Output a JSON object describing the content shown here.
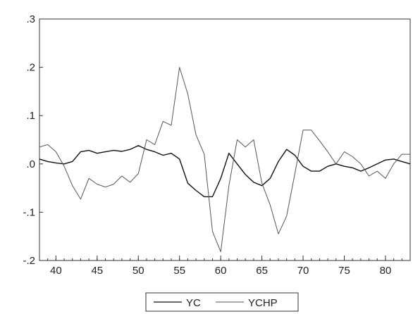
{
  "chart_data": {
    "type": "line",
    "title": "",
    "xlabel": "",
    "ylabel": "",
    "xlim": [
      38,
      83
    ],
    "ylim": [
      -0.2,
      0.3
    ],
    "x_ticks": [
      40,
      45,
      50,
      55,
      60,
      65,
      70,
      75,
      80
    ],
    "x_tick_labels": [
      "40",
      "45",
      "50",
      "55",
      "60",
      "65",
      "70",
      "75",
      "80"
    ],
    "y_ticks": [
      -0.2,
      -0.1,
      0.0,
      0.1,
      0.2,
      0.3
    ],
    "y_tick_labels": [
      "-.2",
      "-.1",
      ".0",
      ".1",
      ".2",
      ".3"
    ],
    "grid": false,
    "legend_position": "bottom",
    "x": [
      38,
      39,
      40,
      41,
      42,
      43,
      44,
      45,
      46,
      47,
      48,
      49,
      50,
      51,
      52,
      53,
      54,
      55,
      56,
      57,
      58,
      59,
      60,
      61,
      62,
      63,
      64,
      65,
      66,
      67,
      68,
      69,
      70,
      71,
      72,
      73,
      74,
      75,
      76,
      77,
      78,
      79,
      80,
      81,
      82,
      83
    ],
    "series": [
      {
        "name": "YC",
        "color": "#111111",
        "values": [
          0.01,
          0.005,
          0.002,
          0.0,
          0.005,
          0.025,
          0.028,
          0.022,
          0.025,
          0.028,
          0.026,
          0.03,
          0.038,
          0.03,
          0.025,
          0.018,
          0.022,
          0.01,
          -0.04,
          -0.055,
          -0.068,
          -0.068,
          -0.03,
          0.022,
          0.0,
          -0.022,
          -0.038,
          -0.045,
          -0.03,
          0.005,
          0.03,
          0.018,
          -0.005,
          -0.015,
          -0.015,
          -0.005,
          0.0,
          -0.005,
          -0.008,
          -0.015,
          -0.008,
          0.0,
          0.008,
          0.01,
          0.005,
          0.0
        ]
      },
      {
        "name": "YCHP",
        "color": "#555555",
        "values": [
          0.035,
          0.04,
          0.025,
          -0.005,
          -0.045,
          -0.073,
          -0.03,
          -0.042,
          -0.048,
          -0.042,
          -0.025,
          -0.038,
          -0.02,
          0.05,
          0.04,
          0.088,
          0.08,
          0.2,
          0.145,
          0.06,
          0.02,
          -0.14,
          -0.182,
          -0.045,
          0.05,
          0.035,
          0.05,
          -0.04,
          -0.085,
          -0.145,
          -0.108,
          -0.02,
          0.07,
          0.07,
          0.048,
          0.025,
          0.0,
          0.025,
          0.015,
          0.0,
          -0.025,
          -0.015,
          -0.03,
          0.0,
          0.02,
          0.02
        ]
      }
    ]
  }
}
